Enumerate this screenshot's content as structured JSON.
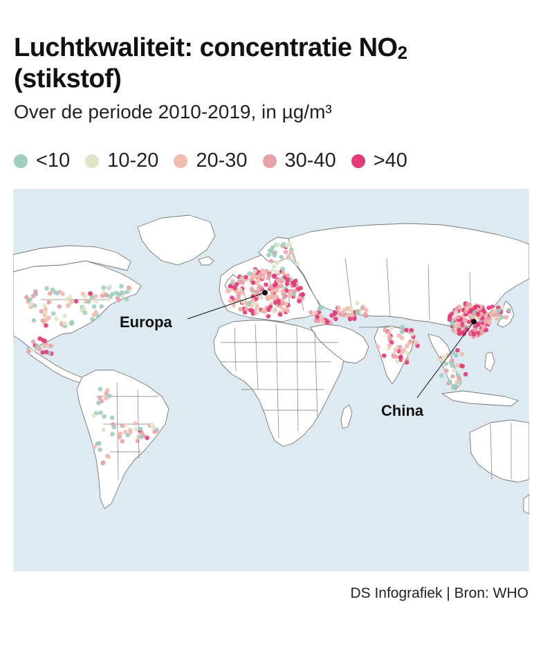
{
  "header": {
    "title_main": "Luchtkwaliteit: concentratie NO",
    "title_sub": "2",
    "title_line2": "(stikstof)",
    "subtitle": "Over de periode 2010-2019, in µg/m³"
  },
  "legend": [
    {
      "label": "<10",
      "color": "#9fcdbf"
    },
    {
      "label": "10-20",
      "color": "#dfe5c6"
    },
    {
      "label": "20-30",
      "color": "#f2bbb0"
    },
    {
      "label": "30-40",
      "color": "#e5a3a8"
    },
    {
      "label": ">40",
      "color": "#e33a78"
    }
  ],
  "map": {
    "ocean_color": "#deeaf1",
    "land_color": "#ffffff",
    "border_color": "#777777",
    "callouts": [
      {
        "label": "Europa"
      },
      {
        "label": "China"
      }
    ]
  },
  "source": "DS Infografiek | Bron: WHO"
}
